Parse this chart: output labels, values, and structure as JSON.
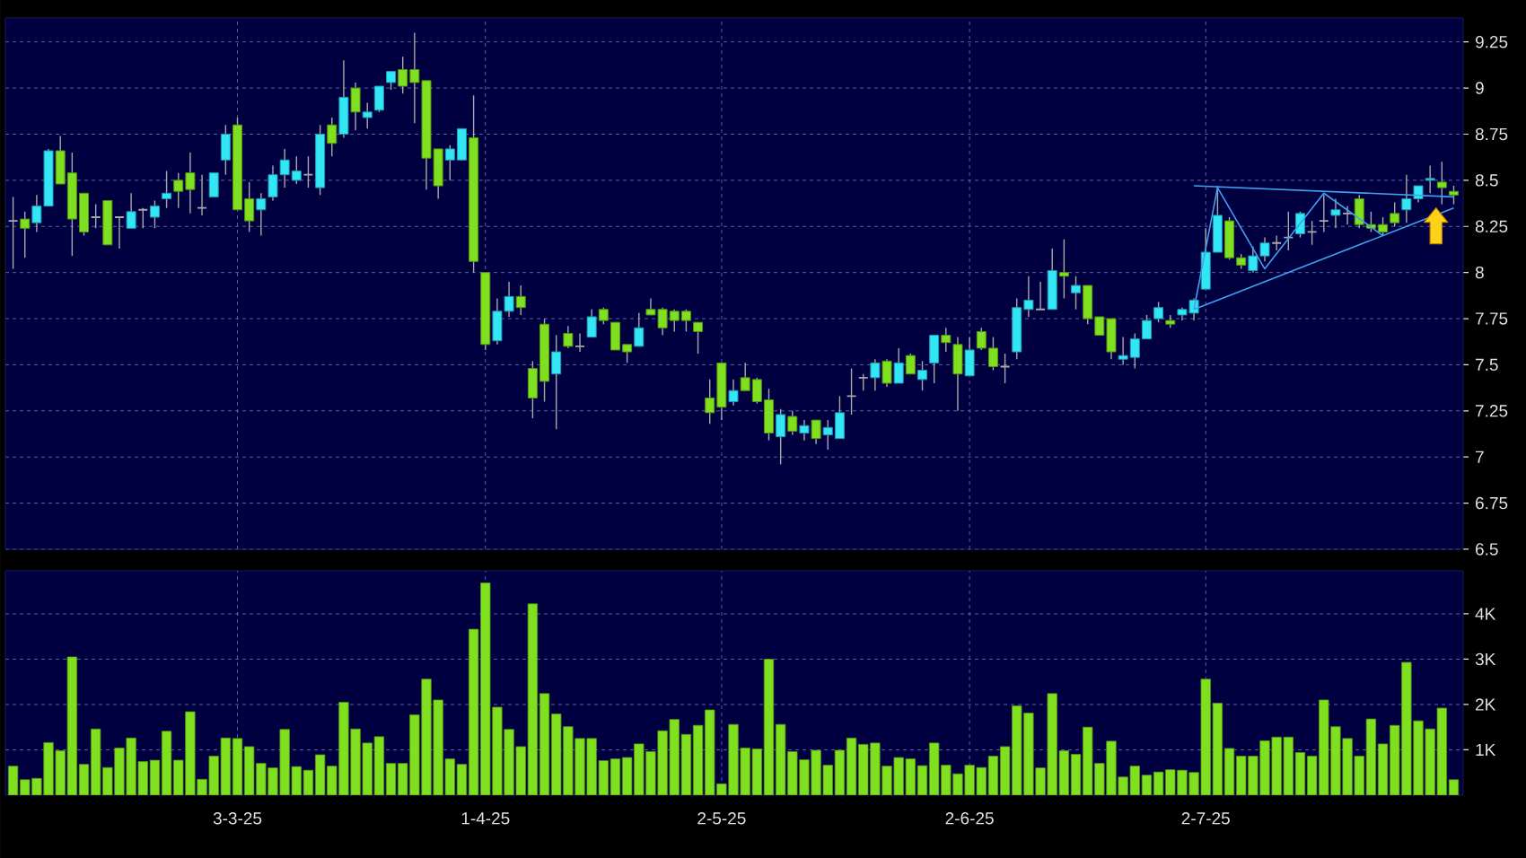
{
  "chart_data": [
    {
      "type": "candlestick",
      "ohlc": [
        [
          8.28,
          8.41,
          8.02,
          8.28
        ],
        [
          8.29,
          8.33,
          8.08,
          8.24
        ],
        [
          8.27,
          8.42,
          8.22,
          8.36
        ],
        [
          8.36,
          8.67,
          8.36,
          8.66
        ],
        [
          8.66,
          8.74,
          8.48,
          8.48
        ],
        [
          8.54,
          8.65,
          8.09,
          8.29
        ],
        [
          8.43,
          8.43,
          8.2,
          8.22
        ],
        [
          8.3,
          8.37,
          8.24,
          8.3
        ],
        [
          8.39,
          8.39,
          8.15,
          8.15
        ],
        [
          8.3,
          8.3,
          8.13,
          8.3
        ],
        [
          8.24,
          8.43,
          8.24,
          8.33
        ],
        [
          8.34,
          8.35,
          8.24,
          8.34
        ],
        [
          8.3,
          8.39,
          8.24,
          8.36
        ],
        [
          8.4,
          8.55,
          8.35,
          8.43
        ],
        [
          8.5,
          8.54,
          8.35,
          8.44
        ],
        [
          8.54,
          8.65,
          8.32,
          8.45
        ],
        [
          8.35,
          8.53,
          8.31,
          8.35
        ],
        [
          8.41,
          8.54,
          8.41,
          8.54
        ],
        [
          8.61,
          8.8,
          8.53,
          8.75
        ],
        [
          8.8,
          8.84,
          8.34,
          8.34
        ],
        [
          8.4,
          8.49,
          8.22,
          8.28
        ],
        [
          8.34,
          8.43,
          8.2,
          8.4
        ],
        [
          8.41,
          8.58,
          8.39,
          8.53
        ],
        [
          8.53,
          8.67,
          8.46,
          8.61
        ],
        [
          8.5,
          8.63,
          8.48,
          8.55
        ],
        [
          8.53,
          8.63,
          8.46,
          8.53
        ],
        [
          8.46,
          8.8,
          8.42,
          8.75
        ],
        [
          8.8,
          8.84,
          8.63,
          8.7
        ],
        [
          8.75,
          9.15,
          8.73,
          8.95
        ],
        [
          9,
          9.03,
          8.77,
          8.87
        ],
        [
          8.84,
          8.92,
          8.78,
          8.87
        ],
        [
          8.88,
          9.01,
          8.87,
          9.01
        ],
        [
          9.03,
          9.09,
          8.99,
          9.09
        ],
        [
          9.1,
          9.17,
          8.97,
          9.01
        ],
        [
          9.1,
          9.3,
          8.81,
          9.03
        ],
        [
          9.04,
          9.04,
          8.45,
          8.62
        ],
        [
          8.67,
          8.67,
          8.4,
          8.47
        ],
        [
          8.61,
          8.69,
          8.5,
          8.67
        ],
        [
          8.61,
          8.78,
          8.61,
          8.78
        ],
        [
          8.73,
          8.96,
          8,
          8.06
        ],
        [
          8,
          8,
          7.58,
          7.61
        ],
        [
          7.63,
          7.86,
          7.61,
          7.79
        ],
        [
          7.79,
          7.95,
          7.76,
          7.87
        ],
        [
          7.87,
          7.93,
          7.77,
          7.81
        ],
        [
          7.48,
          7.52,
          7.21,
          7.32
        ],
        [
          7.72,
          7.75,
          7.3,
          7.41
        ],
        [
          7.45,
          7.66,
          7.15,
          7.57
        ],
        [
          7.67,
          7.71,
          7.59,
          7.6
        ],
        [
          7.6,
          7.67,
          7.57,
          7.6
        ],
        [
          7.65,
          7.8,
          7.65,
          7.76
        ],
        [
          7.8,
          7.81,
          7.72,
          7.74
        ],
        [
          7.73,
          7.73,
          7.58,
          7.58
        ],
        [
          7.61,
          7.61,
          7.51,
          7.57
        ],
        [
          7.6,
          7.78,
          7.6,
          7.7
        ],
        [
          7.8,
          7.86,
          7.77,
          7.77
        ],
        [
          7.8,
          7.81,
          7.66,
          7.7
        ],
        [
          7.79,
          7.8,
          7.68,
          7.74
        ],
        [
          7.79,
          7.8,
          7.68,
          7.74
        ],
        [
          7.73,
          7.73,
          7.56,
          7.68
        ],
        [
          7.32,
          7.42,
          7.18,
          7.24
        ],
        [
          7.51,
          7.51,
          7.2,
          7.27
        ],
        [
          7.3,
          7.42,
          7.28,
          7.36
        ],
        [
          7.43,
          7.51,
          7.36,
          7.36
        ],
        [
          7.42,
          7.43,
          7.29,
          7.3
        ],
        [
          7.31,
          7.37,
          7.09,
          7.13
        ],
        [
          7.11,
          7.26,
          6.96,
          7.23
        ],
        [
          7.22,
          7.25,
          7.12,
          7.14
        ],
        [
          7.13,
          7.2,
          7.09,
          7.17
        ],
        [
          7.2,
          7.2,
          7.07,
          7.1
        ],
        [
          7.12,
          7.2,
          7.04,
          7.16
        ],
        [
          7.1,
          7.33,
          7.1,
          7.24
        ],
        [
          7.33,
          7.48,
          7.23,
          7.33
        ],
        [
          7.43,
          7.45,
          7.36,
          7.43
        ],
        [
          7.43,
          7.53,
          7.36,
          7.51
        ],
        [
          7.52,
          7.53,
          7.38,
          7.4
        ],
        [
          7.4,
          7.59,
          7.4,
          7.51
        ],
        [
          7.55,
          7.56,
          7.45,
          7.45
        ],
        [
          7.42,
          7.52,
          7.36,
          7.47
        ],
        [
          7.51,
          7.66,
          7.4,
          7.66
        ],
        [
          7.66,
          7.7,
          7.57,
          7.62
        ],
        [
          7.61,
          7.65,
          7.25,
          7.45
        ],
        [
          7.44,
          7.65,
          7.44,
          7.58
        ],
        [
          7.68,
          7.7,
          7.58,
          7.59
        ],
        [
          7.59,
          7.65,
          7.47,
          7.49
        ],
        [
          7.49,
          7.56,
          7.4,
          7.49
        ],
        [
          7.57,
          7.86,
          7.53,
          7.81
        ],
        [
          7.8,
          7.98,
          7.76,
          7.85
        ],
        [
          7.8,
          7.95,
          7.8,
          7.8
        ],
        [
          7.8,
          8.13,
          7.8,
          8.01
        ],
        [
          8,
          8.18,
          7.86,
          7.98
        ],
        [
          7.89,
          7.98,
          7.8,
          7.93
        ],
        [
          7.93,
          7.93,
          7.72,
          7.75
        ],
        [
          7.76,
          7.76,
          7.66,
          7.66
        ],
        [
          7.75,
          7.75,
          7.53,
          7.57
        ],
        [
          7.53,
          7.65,
          7.5,
          7.55
        ],
        [
          7.54,
          7.67,
          7.48,
          7.64
        ],
        [
          7.64,
          7.77,
          7.64,
          7.74
        ],
        [
          7.75,
          7.84,
          7.73,
          7.81
        ],
        [
          7.74,
          7.77,
          7.7,
          7.72
        ],
        [
          7.77,
          7.81,
          7.74,
          7.8
        ],
        [
          7.78,
          7.86,
          7.74,
          7.85
        ],
        [
          7.91,
          8.24,
          7.91,
          8.11
        ],
        [
          8.11,
          8.47,
          8.11,
          8.31
        ],
        [
          8.28,
          8.3,
          8.07,
          8.08
        ],
        [
          8.08,
          8.1,
          8.02,
          8.04
        ],
        [
          8.01,
          8.14,
          8,
          8.09
        ],
        [
          8.09,
          8.19,
          8.06,
          8.16
        ],
        [
          8.16,
          8.2,
          8.12,
          8.16
        ],
        [
          8.19,
          8.33,
          8.12,
          8.19
        ],
        [
          8.21,
          8.33,
          8.19,
          8.32
        ],
        [
          8.22,
          8.28,
          8.15,
          8.22
        ],
        [
          8.28,
          8.42,
          8.22,
          8.28
        ],
        [
          8.31,
          8.4,
          8.24,
          8.34
        ],
        [
          8.32,
          8.36,
          8.26,
          8.32
        ],
        [
          8.4,
          8.42,
          8.24,
          8.26
        ],
        [
          8.26,
          8.33,
          8.22,
          8.24
        ],
        [
          8.26,
          8.3,
          8.2,
          8.22
        ],
        [
          8.32,
          8.38,
          8.25,
          8.27
        ],
        [
          8.34,
          8.53,
          8.27,
          8.4
        ],
        [
          8.4,
          8.47,
          8.38,
          8.47
        ],
        [
          8.5,
          8.58,
          8.43,
          8.51
        ],
        [
          8.49,
          8.6,
          8.37,
          8.46
        ],
        [
          8.44,
          8.47,
          8.37,
          8.42
        ]
      ],
      "series": [
        {
          "type": "line",
          "color": "#3fa0f0",
          "values": [
            null,
            null,
            null,
            null,
            null,
            null,
            null,
            null,
            null,
            null,
            null,
            null,
            null,
            null,
            null,
            null,
            null,
            null,
            null,
            null,
            null,
            null,
            null,
            null,
            null,
            null,
            null,
            null,
            null,
            null,
            null,
            null,
            null,
            null,
            null,
            null,
            null,
            null,
            null,
            null,
            null,
            null,
            null,
            null,
            null,
            null,
            null,
            null,
            null,
            null,
            null,
            null,
            null,
            null,
            null,
            null,
            null,
            null,
            null,
            null,
            null,
            null,
            null,
            null,
            null,
            null,
            null,
            null,
            null,
            null,
            null,
            null,
            null,
            null,
            null,
            null,
            null,
            null,
            null,
            null,
            null,
            null,
            null,
            null,
            null,
            null,
            null,
            null,
            null,
            null,
            null,
            null,
            null,
            null,
            null,
            null,
            null,
            null,
            null,
            null,
            8.47,
            null,
            null,
            null,
            null,
            null,
            null,
            null,
            null,
            null,
            null,
            null,
            null,
            null,
            null,
            null,
            null,
            null,
            null,
            null,
            null,
            null,
            8.41
          ]
        },
        {
          "type": "line",
          "color": "#3fa0f0",
          "values": [
            null,
            null,
            null,
            null,
            null,
            null,
            null,
            null,
            null,
            null,
            null,
            null,
            null,
            null,
            null,
            null,
            null,
            null,
            null,
            null,
            null,
            null,
            null,
            null,
            null,
            null,
            null,
            null,
            null,
            null,
            null,
            null,
            null,
            null,
            null,
            null,
            null,
            null,
            null,
            null,
            null,
            null,
            null,
            null,
            null,
            null,
            null,
            null,
            null,
            null,
            null,
            null,
            null,
            null,
            null,
            null,
            null,
            null,
            null,
            null,
            null,
            null,
            null,
            null,
            null,
            null,
            null,
            null,
            null,
            null,
            null,
            null,
            null,
            null,
            null,
            null,
            null,
            null,
            null,
            null,
            null,
            null,
            null,
            null,
            null,
            null,
            null,
            null,
            null,
            null,
            null,
            null,
            null,
            null,
            null,
            null,
            null,
            null,
            null,
            null,
            7.8,
            null,
            8.46,
            null,
            null,
            null,
            8.02,
            null,
            null,
            null,
            null,
            8.43,
            null,
            null,
            null,
            null,
            8.2,
            null,
            null,
            null,
            null,
            null,
            null
          ]
        },
        {
          "type": "line",
          "color": "#3fa0f0",
          "values": [
            null,
            null,
            null,
            null,
            null,
            null,
            null,
            null,
            null,
            null,
            null,
            null,
            null,
            null,
            null,
            null,
            null,
            null,
            null,
            null,
            null,
            null,
            null,
            null,
            null,
            null,
            null,
            null,
            null,
            null,
            null,
            null,
            null,
            null,
            null,
            null,
            null,
            null,
            null,
            null,
            null,
            null,
            null,
            null,
            null,
            null,
            null,
            null,
            null,
            null,
            null,
            null,
            null,
            null,
            null,
            null,
            null,
            null,
            null,
            null,
            null,
            null,
            null,
            null,
            null,
            null,
            null,
            null,
            null,
            null,
            null,
            null,
            null,
            null,
            null,
            null,
            null,
            null,
            null,
            null,
            null,
            null,
            null,
            null,
            null,
            null,
            null,
            null,
            null,
            null,
            null,
            null,
            null,
            null,
            null,
            null,
            null,
            null,
            null,
            null,
            7.8,
            null,
            null,
            null,
            null,
            null,
            null,
            null,
            null,
            null,
            null,
            null,
            null,
            null,
            null,
            null,
            null,
            null,
            null,
            null,
            null,
            null,
            8.35
          ]
        }
      ],
      "ylim": [
        6.5,
        9.38
      ],
      "yticks": [
        6.5,
        6.75,
        7,
        7.25,
        7.5,
        7.75,
        8,
        8.25,
        8.5,
        8.75,
        9,
        9.25
      ],
      "grid": true
    },
    {
      "type": "bar",
      "categories": [
        null,
        null,
        null,
        null,
        null,
        null,
        null,
        null,
        null,
        null,
        null,
        null,
        null,
        null,
        null,
        null,
        null,
        null,
        null,
        "3-3-25",
        null,
        null,
        null,
        null,
        null,
        null,
        null,
        null,
        null,
        null,
        null,
        null,
        null,
        null,
        null,
        null,
        null,
        null,
        null,
        null,
        "1-4-25",
        null,
        null,
        null,
        null,
        null,
        null,
        null,
        null,
        null,
        null,
        null,
        null,
        null,
        null,
        null,
        null,
        null,
        null,
        null,
        "2-5-25",
        null,
        null,
        null,
        null,
        null,
        null,
        null,
        null,
        null,
        null,
        null,
        null,
        null,
        null,
        null,
        null,
        null,
        null,
        null,
        null,
        "2-6-25",
        null,
        null,
        null,
        null,
        null,
        null,
        null,
        null,
        null,
        null,
        null,
        null,
        null,
        null,
        null,
        null,
        null,
        null,
        null,
        "2-7-25",
        null,
        null,
        null,
        null,
        null,
        null,
        null,
        null,
        null,
        null,
        null,
        null,
        null,
        null,
        null,
        null,
        null,
        null,
        null,
        null,
        null
      ],
      "values": [
        640,
        340,
        370,
        1160,
        980,
        3050,
        680,
        1460,
        610,
        1040,
        1260,
        740,
        770,
        1410,
        770,
        1840,
        350,
        860,
        1260,
        1250,
        1070,
        700,
        600,
        1450,
        630,
        550,
        890,
        640,
        2050,
        1460,
        1150,
        1290,
        700,
        700,
        1770,
        2560,
        2100,
        800,
        680,
        3660,
        4680,
        1940,
        1450,
        1070,
        4220,
        2240,
        1790,
        1510,
        1250,
        1250,
        760,
        800,
        830,
        1130,
        960,
        1420,
        1670,
        1340,
        1540,
        1880,
        250,
        1560,
        1040,
        1020,
        3000,
        1560,
        960,
        780,
        990,
        660,
        990,
        1260,
        1120,
        1150,
        640,
        830,
        800,
        650,
        1150,
        660,
        470,
        660,
        610,
        860,
        1070,
        1970,
        1810,
        600,
        2240,
        980,
        900,
        1500,
        700,
        1190,
        400,
        640,
        440,
        510,
        560,
        550,
        500,
        2560,
        2030,
        1030,
        860,
        860,
        1200,
        1280,
        1280,
        940,
        860,
        2100,
        1510,
        1250,
        860,
        1680,
        1130,
        1540,
        2930,
        1640,
        1460,
        1920,
        340
      ],
      "color": "#80e020",
      "ylim": [
        0,
        4950
      ],
      "yticks": [
        {
          "value": 1000,
          "label": "1K"
        },
        {
          "value": 2000,
          "label": "2K"
        },
        {
          "value": 3000,
          "label": "3K"
        },
        {
          "value": 4000,
          "label": "4K"
        }
      ],
      "grid": true
    }
  ]
}
